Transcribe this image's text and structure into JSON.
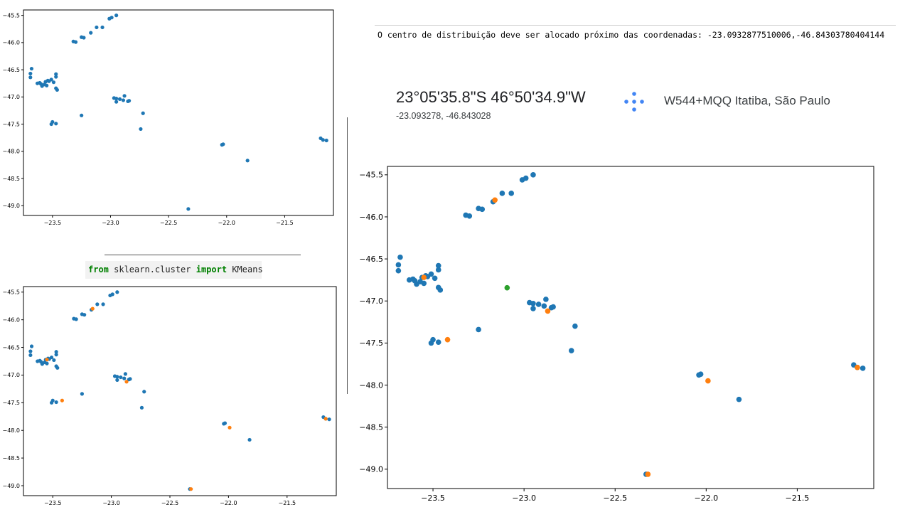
{
  "code": {
    "kw_from": "from",
    "module": " sklearn.cluster ",
    "kw_import": "import",
    "name": " KMeans"
  },
  "output_text": "O centro de distribuição deve ser alocado próximo das coordenadas: -23.0932877510006,-46.84303780404144",
  "location": {
    "dms": "23°05'35.8\"S 46°50'34.9\"W",
    "decimal": "-23.093278, -46.843028",
    "plus_code": "W544+MQQ Itatiba, São Paulo",
    "icon": "plus-code-icon"
  },
  "colors": {
    "points": "#1f77b4",
    "centroids": "#ff7f0e",
    "center": "#2ca02c"
  },
  "chart_data": [
    {
      "type": "scatter",
      "series": [
        {
          "points": [
            [
              -23.68,
              -46.48
            ],
            [
              -23.69,
              -46.57
            ],
            [
              -23.69,
              -46.64
            ],
            [
              -23.63,
              -46.75
            ],
            [
              -23.61,
              -46.74
            ],
            [
              -23.6,
              -46.76
            ],
            [
              -23.59,
              -46.8
            ],
            [
              -23.57,
              -46.77
            ],
            [
              -23.56,
              -46.72
            ],
            [
              -23.55,
              -46.79
            ],
            [
              -23.54,
              -46.7
            ],
            [
              -23.53,
              -46.71
            ],
            [
              -23.51,
              -46.68
            ],
            [
              -23.49,
              -46.73
            ],
            [
              -23.47,
              -46.58
            ],
            [
              -23.47,
              -46.63
            ],
            [
              -23.47,
              -46.84
            ],
            [
              -23.46,
              -46.87
            ],
            [
              -23.51,
              -47.5
            ],
            [
              -23.5,
              -47.46
            ],
            [
              -23.47,
              -47.49
            ],
            [
              -23.25,
              -47.34
            ],
            [
              -23.32,
              -45.98
            ],
            [
              -23.3,
              -45.99
            ],
            [
              -23.25,
              -45.9
            ],
            [
              -23.23,
              -45.91
            ],
            [
              -23.17,
              -45.82
            ],
            [
              -23.12,
              -45.72
            ],
            [
              -23.07,
              -45.72
            ],
            [
              -23.01,
              -45.56
            ],
            [
              -22.99,
              -45.54
            ],
            [
              -22.95,
              -45.5
            ],
            [
              -22.97,
              -47.02
            ],
            [
              -22.95,
              -47.03
            ],
            [
              -22.92,
              -47.04
            ],
            [
              -22.95,
              -47.09
            ],
            [
              -22.89,
              -47.06
            ],
            [
              -22.88,
              -46.98
            ],
            [
              -22.85,
              -47.08
            ],
            [
              -22.84,
              -47.07
            ],
            [
              -22.74,
              -47.59
            ],
            [
              -22.72,
              -47.3
            ],
            [
              -22.33,
              -49.06
            ],
            [
              -22.04,
              -47.88
            ],
            [
              -22.03,
              -47.87
            ],
            [
              -21.82,
              -48.17
            ],
            [
              -21.19,
              -47.76
            ],
            [
              -21.17,
              -47.79
            ],
            [
              -21.14,
              -47.8
            ]
          ]
        }
      ],
      "xlim": [
        -23.75,
        -21.08
      ],
      "ylim": [
        -49.18,
        -45.4
      ],
      "x_ticks": [
        -23.5,
        -23.0,
        -22.5,
        -22.0,
        -21.5
      ],
      "y_ticks": [
        -45.5,
        -46.0,
        -46.5,
        -47.0,
        -47.5,
        -48.0,
        -48.5,
        -49.0
      ],
      "x_tick_labels": [
        "−23.5",
        "−23.0",
        "−22.5",
        "−22.0",
        "−21.5"
      ],
      "y_tick_labels": [
        "−45.5",
        "−46.0",
        "−46.5",
        "−47.0",
        "−47.5",
        "−48.0",
        "−48.5",
        "−49.0"
      ]
    },
    {
      "type": "scatter",
      "series": [
        {
          "points": [
            [
              -23.68,
              -46.48
            ],
            [
              -23.69,
              -46.57
            ],
            [
              -23.69,
              -46.64
            ],
            [
              -23.63,
              -46.75
            ],
            [
              -23.61,
              -46.74
            ],
            [
              -23.6,
              -46.76
            ],
            [
              -23.59,
              -46.8
            ],
            [
              -23.57,
              -46.77
            ],
            [
              -23.56,
              -46.72
            ],
            [
              -23.55,
              -46.79
            ],
            [
              -23.54,
              -46.7
            ],
            [
              -23.53,
              -46.71
            ],
            [
              -23.51,
              -46.68
            ],
            [
              -23.49,
              -46.73
            ],
            [
              -23.47,
              -46.58
            ],
            [
              -23.47,
              -46.63
            ],
            [
              -23.47,
              -46.84
            ],
            [
              -23.46,
              -46.87
            ],
            [
              -23.51,
              -47.5
            ],
            [
              -23.5,
              -47.46
            ],
            [
              -23.47,
              -47.49
            ],
            [
              -23.25,
              -47.34
            ],
            [
              -23.32,
              -45.98
            ],
            [
              -23.3,
              -45.99
            ],
            [
              -23.25,
              -45.9
            ],
            [
              -23.23,
              -45.91
            ],
            [
              -23.17,
              -45.82
            ],
            [
              -23.12,
              -45.72
            ],
            [
              -23.07,
              -45.72
            ],
            [
              -23.01,
              -45.56
            ],
            [
              -22.99,
              -45.54
            ],
            [
              -22.95,
              -45.5
            ],
            [
              -22.97,
              -47.02
            ],
            [
              -22.95,
              -47.03
            ],
            [
              -22.92,
              -47.04
            ],
            [
              -22.95,
              -47.09
            ],
            [
              -22.89,
              -47.06
            ],
            [
              -22.88,
              -46.98
            ],
            [
              -22.85,
              -47.08
            ],
            [
              -22.84,
              -47.07
            ],
            [
              -22.74,
              -47.59
            ],
            [
              -22.72,
              -47.3
            ],
            [
              -22.33,
              -49.06
            ],
            [
              -22.04,
              -47.88
            ],
            [
              -22.03,
              -47.87
            ],
            [
              -21.82,
              -48.17
            ],
            [
              -21.19,
              -47.76
            ],
            [
              -21.17,
              -47.79
            ],
            [
              -21.14,
              -47.8
            ]
          ]
        },
        {
          "points": [
            [
              -23.55,
              -46.72
            ],
            [
              -23.42,
              -47.46
            ],
            [
              -23.16,
              -45.8
            ],
            [
              -22.87,
              -47.12
            ],
            [
              -22.32,
              -49.06
            ],
            [
              -21.99,
              -47.95
            ],
            [
              -21.17,
              -47.79
            ]
          ]
        }
      ],
      "xlim": [
        -23.75,
        -21.08
      ],
      "ylim": [
        -49.18,
        -45.4
      ],
      "x_ticks": [
        -23.5,
        -23.0,
        -22.5,
        -22.0,
        -21.5
      ],
      "y_ticks": [
        -45.5,
        -46.0,
        -46.5,
        -47.0,
        -47.5,
        -48.0,
        -48.5,
        -49.0
      ],
      "x_tick_labels": [
        "−23.5",
        "−23.0",
        "−22.5",
        "−22.0",
        "−21.5"
      ],
      "y_tick_labels": [
        "−45.5",
        "−46.0",
        "−46.5",
        "−47.0",
        "−47.5",
        "−48.0",
        "−48.5",
        "−49.0"
      ]
    },
    {
      "type": "scatter",
      "series": [
        {
          "points": [
            [
              -23.68,
              -46.48
            ],
            [
              -23.69,
              -46.57
            ],
            [
              -23.69,
              -46.64
            ],
            [
              -23.63,
              -46.75
            ],
            [
              -23.61,
              -46.74
            ],
            [
              -23.6,
              -46.76
            ],
            [
              -23.59,
              -46.8
            ],
            [
              -23.57,
              -46.77
            ],
            [
              -23.56,
              -46.72
            ],
            [
              -23.55,
              -46.79
            ],
            [
              -23.54,
              -46.7
            ],
            [
              -23.53,
              -46.71
            ],
            [
              -23.51,
              -46.68
            ],
            [
              -23.49,
              -46.73
            ],
            [
              -23.47,
              -46.58
            ],
            [
              -23.47,
              -46.63
            ],
            [
              -23.47,
              -46.84
            ],
            [
              -23.46,
              -46.87
            ],
            [
              -23.51,
              -47.5
            ],
            [
              -23.5,
              -47.46
            ],
            [
              -23.47,
              -47.49
            ],
            [
              -23.25,
              -47.34
            ],
            [
              -23.32,
              -45.98
            ],
            [
              -23.3,
              -45.99
            ],
            [
              -23.25,
              -45.9
            ],
            [
              -23.23,
              -45.91
            ],
            [
              -23.17,
              -45.82
            ],
            [
              -23.12,
              -45.72
            ],
            [
              -23.07,
              -45.72
            ],
            [
              -23.01,
              -45.56
            ],
            [
              -22.99,
              -45.54
            ],
            [
              -22.95,
              -45.5
            ],
            [
              -22.97,
              -47.02
            ],
            [
              -22.95,
              -47.03
            ],
            [
              -22.92,
              -47.04
            ],
            [
              -22.95,
              -47.09
            ],
            [
              -22.89,
              -47.06
            ],
            [
              -22.88,
              -46.98
            ],
            [
              -22.85,
              -47.08
            ],
            [
              -22.84,
              -47.07
            ],
            [
              -22.74,
              -47.59
            ],
            [
              -22.72,
              -47.3
            ],
            [
              -22.33,
              -49.06
            ],
            [
              -22.04,
              -47.88
            ],
            [
              -22.03,
              -47.87
            ],
            [
              -21.82,
              -48.17
            ],
            [
              -21.19,
              -47.76
            ],
            [
              -21.17,
              -47.79
            ],
            [
              -21.14,
              -47.8
            ]
          ]
        },
        {
          "points": [
            [
              -23.55,
              -46.72
            ],
            [
              -23.42,
              -47.46
            ],
            [
              -23.16,
              -45.8
            ],
            [
              -22.87,
              -47.12
            ],
            [
              -22.32,
              -49.06
            ],
            [
              -21.99,
              -47.95
            ],
            [
              -21.17,
              -47.79
            ]
          ]
        },
        {
          "points": [
            [
              -23.093,
              -46.843
            ]
          ]
        }
      ],
      "xlim": [
        -23.75,
        -21.08
      ],
      "ylim": [
        -49.23,
        -45.4
      ],
      "x_ticks": [
        -23.5,
        -23.0,
        -22.5,
        -22.0,
        -21.5
      ],
      "y_ticks": [
        -45.5,
        -46.0,
        -46.5,
        -47.0,
        -47.5,
        -48.0,
        -48.5,
        -49.0
      ],
      "x_tick_labels": [
        "−23.5",
        "−23.0",
        "−22.5",
        "−22.0",
        "−21.5"
      ],
      "y_tick_labels": [
        "−45.5",
        "−46.0",
        "−46.5",
        "−47.0",
        "−47.5",
        "−48.0",
        "−48.5",
        "−49.0"
      ]
    }
  ]
}
